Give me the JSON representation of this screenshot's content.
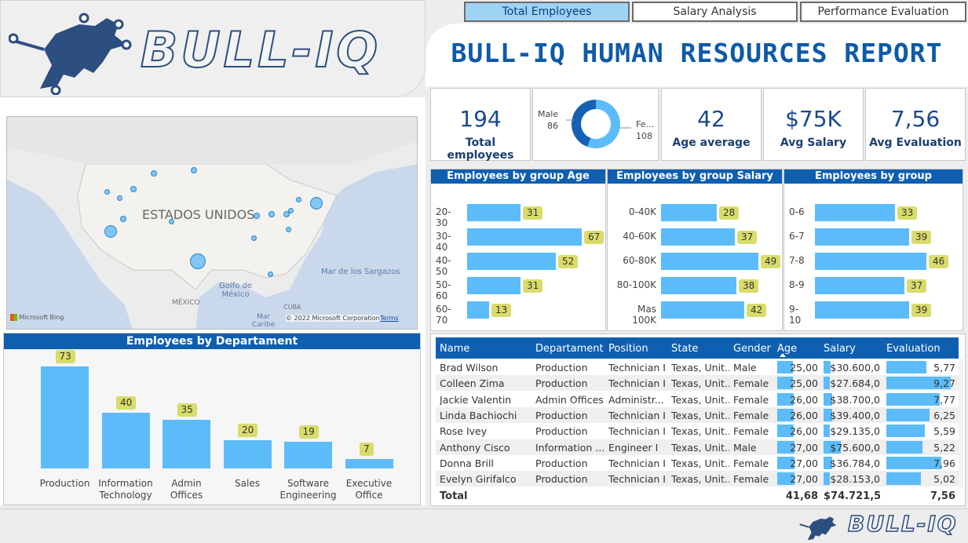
{
  "tabs": [
    "Total Employees",
    "Salary Analysis",
    "Performance Evaluation"
  ],
  "logo_text": "BULL-IQ",
  "title": "BULL-IQ HUMAN RESOURCES REPORT",
  "kpis": [
    {
      "value": "194",
      "label": "Total employees"
    },
    {
      "value": "42",
      "label": "Age average"
    },
    {
      "value": "$75K",
      "label": "Avg Salary"
    },
    {
      "value": "7,56",
      "label": "Avg Evaluation"
    }
  ],
  "gender": {
    "male_label": "Male",
    "male_value": "86",
    "female_label": "Fe...",
    "female_value": "108",
    "male_count": 86,
    "female_count": 108
  },
  "map": {
    "country": "ESTADOS UNIDOS",
    "gulf": "Golfo de\nMéxico",
    "mexico": "MÉXICO",
    "sargasso": "Mar de los Sargazos",
    "cuba": "CUBA",
    "caribe": "Mar\nCaribe",
    "bing": "Microsoft Bing",
    "copyright": "© 2022 Microsoft Corporation",
    "terms": "Terms"
  },
  "age_chart": {
    "title": "Employees by group Age",
    "max": 67,
    "categories": [
      "20-30",
      "30-40",
      "40-50",
      "50-60",
      "60-70"
    ],
    "values": [
      31,
      67,
      52,
      31,
      13
    ]
  },
  "salary_chart": {
    "title": "Employees by group Salary",
    "max": 49,
    "categories": [
      "0-40K",
      "40-60K",
      "60-80K",
      "80-100K",
      "Mas 100K"
    ],
    "values": [
      28,
      37,
      49,
      38,
      42
    ]
  },
  "eval_chart": {
    "title": "Employees by group Evaluation",
    "max": 46,
    "categories": [
      "0-6",
      "6-7",
      "7-8",
      "8-9",
      "9-10"
    ],
    "values": [
      33,
      39,
      46,
      37,
      39
    ]
  },
  "dept_chart": {
    "title": "Employees by Departament",
    "max": 73,
    "categories": [
      "Production",
      "Information\nTechnology",
      "Admin\nOffices",
      "Sales",
      "Software\nEngineering",
      "Executive\nOffice"
    ],
    "values": [
      73,
      40,
      35,
      20,
      19,
      7
    ]
  },
  "table": {
    "headers": [
      "Name",
      "Departament",
      "Position",
      "State",
      "Gender",
      "Age",
      "Salary",
      "Evaluation"
    ],
    "rows": [
      {
        "name": "Brad Wilson",
        "dept": "Production",
        "pos": "Technician I",
        "state": "Texas, Unit...",
        "gender": "Male",
        "age": "25,00",
        "salary": "$30.600,0",
        "eval": "5,77",
        "age_n": 25,
        "sal_n": 30600,
        "eval_n": 5.77
      },
      {
        "name": "Colleen Zima",
        "dept": "Production",
        "pos": "Technician I",
        "state": "Texas, Unit...",
        "gender": "Female",
        "age": "25,00",
        "salary": "$27.684,0",
        "eval": "9,27",
        "age_n": 25,
        "sal_n": 27684,
        "eval_n": 9.27
      },
      {
        "name": "Jackie Valentin",
        "dept": "Admin Offices",
        "pos": "Administr...",
        "state": "Texas, Unit...",
        "gender": "Female",
        "age": "26,00",
        "salary": "$38.700,0",
        "eval": "7,77",
        "age_n": 26,
        "sal_n": 38700,
        "eval_n": 7.77
      },
      {
        "name": "Linda Bachiochi",
        "dept": "Production",
        "pos": "Technician I",
        "state": "Texas, Unit...",
        "gender": "Female",
        "age": "26,00",
        "salary": "$39.400,0",
        "eval": "6,25",
        "age_n": 26,
        "sal_n": 39400,
        "eval_n": 6.25
      },
      {
        "name": "Rose Ivey",
        "dept": "Production",
        "pos": "Technician I",
        "state": "Texas, Unit...",
        "gender": "Female",
        "age": "26,00",
        "salary": "$29.135,0",
        "eval": "5,59",
        "age_n": 26,
        "sal_n": 29135,
        "eval_n": 5.59
      },
      {
        "name": "Anthony Cisco",
        "dept": "Information ...",
        "pos": "Engineer I",
        "state": "Texas, Unit...",
        "gender": "Male",
        "age": "27,00",
        "salary": "$75.600,0",
        "eval": "5,22",
        "age_n": 27,
        "sal_n": 75600,
        "eval_n": 5.22
      },
      {
        "name": "Donna Brill",
        "dept": "Production",
        "pos": "Technician I",
        "state": "Texas, Unit...",
        "gender": "Female",
        "age": "27,00",
        "salary": "$36.784,0",
        "eval": "7,96",
        "age_n": 27,
        "sal_n": 36784,
        "eval_n": 7.96
      },
      {
        "name": "Evelyn Girifalco",
        "dept": "Production",
        "pos": "Technician I",
        "state": "Texas, Unit...",
        "gender": "Female",
        "age": "27,00",
        "salary": "$28.153,0",
        "eval": "5,02",
        "age_n": 27,
        "sal_n": 28153,
        "eval_n": 5.02
      }
    ],
    "total_label": "Total",
    "total_age": "41,68",
    "total_salary": "$74.721,5",
    "total_eval": "7,56"
  },
  "footer_logo": "BULL-IQ",
  "colors": {
    "accent": "#0f5fb1",
    "bar": "#5bbcf9",
    "label_bg": "#d9dc6a"
  }
}
